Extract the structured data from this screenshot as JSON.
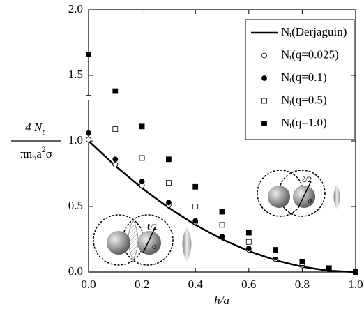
{
  "chart_data": {
    "type": "line",
    "xlabel": "h/a",
    "ylabel": {
      "numerator": [
        "4 N",
        "t"
      ],
      "denominator": [
        "πn",
        "b",
        "a",
        "2",
        "σ"
      ]
    },
    "x": [
      0.0,
      0.1,
      0.2,
      0.3,
      0.4,
      0.5,
      0.6,
      0.7,
      0.8,
      0.9,
      1.0
    ],
    "series": [
      {
        "name": "Nt(Derjaguin)",
        "style": "line",
        "color": "#000000",
        "values": [
          1.0,
          0.81,
          0.64,
          0.49,
          0.36,
          0.25,
          0.16,
          0.09,
          0.04,
          0.01,
          0.0
        ]
      },
      {
        "name": "Nt(q=0.025)",
        "style": "open-circle",
        "color": "#000000",
        "values": [
          1.01,
          0.82,
          0.66,
          0.51,
          0.38,
          0.27,
          0.17,
          0.1,
          0.05,
          0.02,
          0.0
        ]
      },
      {
        "name": "Nt(q=0.1)",
        "style": "filled-circle",
        "color": "#000000",
        "values": [
          1.06,
          0.86,
          0.69,
          0.53,
          0.39,
          0.27,
          0.18,
          0.11,
          0.06,
          0.02,
          0.0
        ]
      },
      {
        "name": "Nt(q=0.5)",
        "style": "open-square",
        "color": "#000000",
        "values": [
          1.33,
          1.09,
          0.87,
          0.68,
          0.5,
          0.36,
          0.23,
          0.13,
          0.07,
          0.03,
          0.0
        ]
      },
      {
        "name": "Nt(q=1.0)",
        "style": "filled-square",
        "color": "#000000",
        "values": [
          1.66,
          1.38,
          1.11,
          0.86,
          0.65,
          0.46,
          0.3,
          0.17,
          0.08,
          0.03,
          0.0
        ]
      }
    ],
    "xlim": [
      0.0,
      1.0
    ],
    "xticks": [
      {
        "value": 0,
        "label": "0.0"
      },
      {
        "value": 0.2,
        "label": "0.2"
      },
      {
        "value": 0.4,
        "label": "0.4"
      },
      {
        "value": 0.6,
        "label": "0.6"
      },
      {
        "value": 0.8,
        "label": "0.8"
      },
      {
        "value": 1,
        "label": "1.0"
      }
    ],
    "ylim": [
      0.0,
      2.0
    ],
    "yticks": [
      {
        "value": 0,
        "label": "0.0"
      },
      {
        "value": 0.5,
        "label": "0.5"
      },
      {
        "value": 1,
        "label": "1.0"
      },
      {
        "value": 1.5,
        "label": "1.5"
      },
      {
        "value": 2,
        "label": "2.0"
      }
    ],
    "legend": "upper right",
    "annotations": [
      "ℓ/2",
      "σ",
      "ℓ/2",
      "σ"
    ]
  }
}
